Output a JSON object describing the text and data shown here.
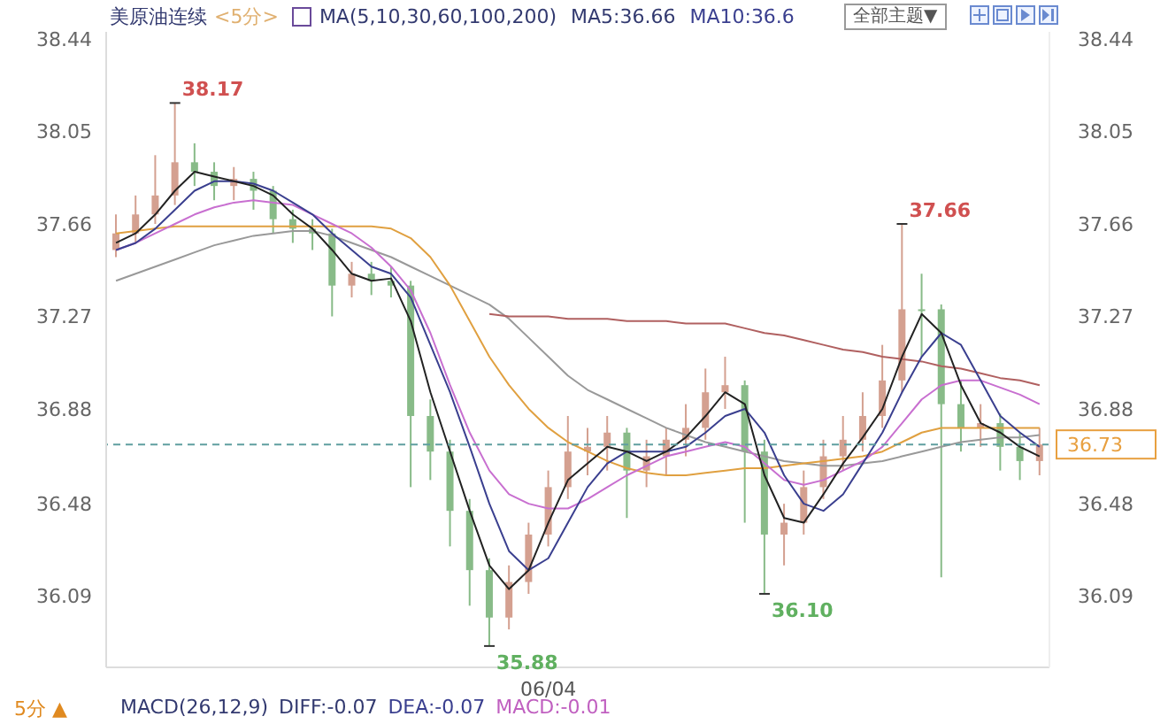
{
  "chart_data": {
    "type": "candlestick",
    "title": "美原油连续",
    "subtitle": "<5分>",
    "categories": [
      null,
      null,
      null,
      null,
      null,
      null,
      null,
      null,
      null,
      null,
      null,
      null,
      null,
      null,
      null,
      null,
      null,
      null,
      null,
      null,
      null,
      null,
      "06/04",
      null,
      null,
      null,
      null,
      null,
      null,
      null,
      null,
      null,
      null,
      null,
      null,
      null,
      null,
      null,
      null,
      null,
      null,
      null,
      null,
      null,
      null,
      null,
      null,
      null
    ],
    "ohlc": [
      [
        37.55,
        37.7,
        37.52,
        37.62
      ],
      [
        37.62,
        37.78,
        37.58,
        37.7
      ],
      [
        37.7,
        37.95,
        37.66,
        37.78
      ],
      [
        37.78,
        38.17,
        37.74,
        37.92
      ],
      [
        37.92,
        38.0,
        37.82,
        37.88
      ],
      [
        37.88,
        37.92,
        37.76,
        37.82
      ],
      [
        37.82,
        37.9,
        37.76,
        37.85
      ],
      [
        37.85,
        37.88,
        37.72,
        37.8
      ],
      [
        37.8,
        37.82,
        37.62,
        37.68
      ],
      [
        37.68,
        37.72,
        37.58,
        37.64
      ],
      [
        37.64,
        37.68,
        37.55,
        37.62
      ],
      [
        37.62,
        37.64,
        37.27,
        37.4
      ],
      [
        37.4,
        37.5,
        37.35,
        37.45
      ],
      [
        37.45,
        37.5,
        37.36,
        37.42
      ],
      [
        37.42,
        37.48,
        37.35,
        37.4
      ],
      [
        37.4,
        37.42,
        36.55,
        36.85
      ],
      [
        36.85,
        36.92,
        36.58,
        36.7
      ],
      [
        36.7,
        36.75,
        36.3,
        36.45
      ],
      [
        36.45,
        36.5,
        36.05,
        36.2
      ],
      [
        36.2,
        36.25,
        35.88,
        36.0
      ],
      [
        36.0,
        36.22,
        35.95,
        36.15
      ],
      [
        36.15,
        36.4,
        36.1,
        36.35
      ],
      [
        36.35,
        36.62,
        36.3,
        36.55
      ],
      [
        36.55,
        36.85,
        36.5,
        36.7
      ],
      [
        36.7,
        36.8,
        36.6,
        36.72
      ],
      [
        36.72,
        36.85,
        36.62,
        36.78
      ],
      [
        36.78,
        36.8,
        36.42,
        36.62
      ],
      [
        36.62,
        36.75,
        36.55,
        36.68
      ],
      [
        36.68,
        36.8,
        36.6,
        36.75
      ],
      [
        36.75,
        36.9,
        36.68,
        36.8
      ],
      [
        36.8,
        37.05,
        36.75,
        36.95
      ],
      [
        36.95,
        37.1,
        36.88,
        36.98
      ],
      [
        36.98,
        37.0,
        36.4,
        36.7
      ],
      [
        36.7,
        36.75,
        36.1,
        36.35
      ],
      [
        36.35,
        36.48,
        36.22,
        36.4
      ],
      [
        36.4,
        36.62,
        36.35,
        36.55
      ],
      [
        36.55,
        36.75,
        36.5,
        36.68
      ],
      [
        36.68,
        36.85,
        36.62,
        36.75
      ],
      [
        36.75,
        36.95,
        36.7,
        36.85
      ],
      [
        36.85,
        37.15,
        36.8,
        37.0
      ],
      [
        37.0,
        37.66,
        36.95,
        37.3
      ],
      [
        37.3,
        37.45,
        37.1,
        37.3
      ],
      [
        37.3,
        37.32,
        36.17,
        36.9
      ],
      [
        36.9,
        37.0,
        36.7,
        36.8
      ],
      [
        36.8,
        36.9,
        36.72,
        36.82
      ],
      [
        36.82,
        36.86,
        36.62,
        36.72
      ],
      [
        36.72,
        36.78,
        36.58,
        36.66
      ],
      [
        36.66,
        36.8,
        36.6,
        36.73
      ]
    ],
    "colors": [
      "#d4a090",
      "#d4a090",
      "#d4a090",
      "#d4a090",
      "#88bb88",
      "#88bb88",
      "#d4a090",
      "#88bb88",
      "#88bb88",
      "#88bb88",
      "#88bb88",
      "#88bb88",
      "#d4a090",
      "#88bb88",
      "#88bb88",
      "#88bb88",
      "#88bb88",
      "#88bb88",
      "#88bb88",
      "#88bb88",
      "#d4a090",
      "#d4a090",
      "#d4a090",
      "#d4a090",
      "#d4a090",
      "#d4a090",
      "#88bb88",
      "#d4a090",
      "#d4a090",
      "#d4a090",
      "#d4a090",
      "#d4a090",
      "#88bb88",
      "#88bb88",
      "#d4a090",
      "#d4a090",
      "#d4a090",
      "#d4a090",
      "#d4a090",
      "#d4a090",
      "#d4a090",
      "#88bb88",
      "#88bb88",
      "#88bb88",
      "#d4a090",
      "#88bb88",
      "#88bb88",
      "#d4a090"
    ],
    "series": [
      {
        "type": "line",
        "color": "#999999",
        "values": [
          37.42,
          37.45,
          37.48,
          37.51,
          37.54,
          37.57,
          37.59,
          37.61,
          37.62,
          37.63,
          37.63,
          37.61,
          37.58,
          37.55,
          37.52,
          37.48,
          37.44,
          37.4,
          37.36,
          37.32,
          37.26,
          37.18,
          37.1,
          37.02,
          36.96,
          36.92,
          36.88,
          36.84,
          36.8,
          36.77,
          36.74,
          36.72,
          36.7,
          36.68,
          36.66,
          36.65,
          36.64,
          36.64,
          36.65,
          36.66,
          36.68,
          36.7,
          36.72,
          36.74,
          36.75,
          36.76,
          36.76,
          36.77
        ]
      },
      {
        "type": "line",
        "color": "#b06060",
        "values": [
          null,
          null,
          null,
          null,
          null,
          null,
          null,
          null,
          null,
          null,
          null,
          null,
          null,
          null,
          null,
          null,
          null,
          null,
          null,
          37.28,
          37.27,
          37.27,
          37.27,
          37.26,
          37.26,
          37.26,
          37.25,
          37.25,
          37.25,
          37.24,
          37.24,
          37.24,
          37.22,
          37.2,
          37.19,
          37.17,
          37.15,
          37.13,
          37.12,
          37.1,
          37.09,
          37.08,
          37.06,
          37.05,
          37.03,
          37.01,
          37.0,
          36.98
        ]
      },
      {
        "type": "line",
        "color": "#e0a040",
        "values": [
          37.62,
          37.63,
          37.64,
          37.65,
          37.65,
          37.65,
          37.65,
          37.65,
          37.65,
          37.65,
          37.65,
          37.65,
          37.65,
          37.65,
          37.64,
          37.6,
          37.52,
          37.4,
          37.25,
          37.1,
          36.98,
          36.88,
          36.8,
          36.74,
          36.7,
          36.66,
          36.63,
          36.61,
          36.6,
          36.6,
          36.61,
          36.62,
          36.63,
          36.63,
          36.64,
          36.65,
          36.66,
          36.67,
          36.68,
          36.7,
          36.74,
          36.78,
          36.8,
          36.8,
          36.8,
          36.8,
          36.8,
          36.8
        ]
      },
      {
        "type": "line",
        "color": "#c86fd0",
        "values": [
          37.55,
          37.58,
          37.62,
          37.66,
          37.7,
          37.73,
          37.75,
          37.76,
          37.75,
          37.74,
          37.7,
          37.66,
          37.62,
          37.56,
          37.48,
          37.38,
          37.2,
          36.98,
          36.78,
          36.62,
          36.52,
          36.48,
          36.46,
          36.46,
          36.5,
          36.55,
          36.6,
          36.64,
          36.68,
          36.7,
          36.72,
          36.74,
          36.72,
          36.65,
          36.58,
          36.56,
          36.58,
          36.62,
          36.66,
          36.72,
          36.82,
          36.92,
          36.98,
          37.0,
          37.0,
          36.97,
          36.94,
          36.9
        ]
      },
      {
        "type": "line",
        "color": "#3a3f8f",
        "values": [
          37.55,
          37.58,
          37.64,
          37.72,
          37.8,
          37.84,
          37.84,
          37.83,
          37.8,
          37.75,
          37.7,
          37.62,
          37.55,
          37.48,
          37.45,
          37.35,
          37.15,
          36.95,
          36.72,
          36.48,
          36.28,
          36.2,
          36.25,
          36.4,
          36.55,
          36.65,
          36.7,
          36.7,
          36.7,
          36.72,
          36.78,
          36.85,
          36.88,
          36.78,
          36.6,
          36.48,
          36.45,
          36.52,
          36.65,
          36.78,
          36.95,
          37.1,
          37.2,
          37.15,
          37.0,
          36.85,
          36.78,
          36.72
        ]
      },
      {
        "type": "line",
        "color": "#222222",
        "values": [
          37.58,
          37.62,
          37.7,
          37.8,
          37.88,
          37.86,
          37.84,
          37.82,
          37.78,
          37.7,
          37.64,
          37.55,
          37.45,
          37.42,
          37.43,
          37.25,
          36.95,
          36.7,
          36.45,
          36.22,
          36.12,
          36.2,
          36.4,
          36.58,
          36.65,
          36.72,
          36.7,
          36.66,
          36.7,
          36.76,
          36.85,
          36.95,
          36.9,
          36.6,
          36.42,
          36.4,
          36.52,
          36.65,
          36.76,
          36.88,
          37.1,
          37.28,
          37.2,
          36.98,
          36.82,
          36.78,
          36.72,
          36.68
        ]
      }
    ],
    "ylim": [
      35.79,
      38.47
    ],
    "yticks": [
      36.09,
      36.48,
      36.88,
      37.27,
      37.66,
      38.05,
      38.44
    ],
    "y2lim": [
      35.79,
      38.47
    ],
    "y2ticks": [
      36.09,
      36.48,
      36.88,
      37.27,
      37.66,
      38.05,
      38.44
    ],
    "ref_lines": [
      {
        "axis": "y2",
        "value": 36.73,
        "label": "36.73",
        "color": "#5f9ea0",
        "line_style": "dashed"
      }
    ],
    "annotations": [
      "MA(5,10,30,60,100,200)",
      "MA5:36.66",
      "MA10:36.6",
      "全部主题▼",
      "5分 ▲",
      "MACD(26,12,9)",
      "DIFF:-0.07",
      "DEA:-0.07",
      "MACD:-0.01",
      "38.17",
      "37.66",
      "35.88",
      "36.10"
    ]
  }
}
